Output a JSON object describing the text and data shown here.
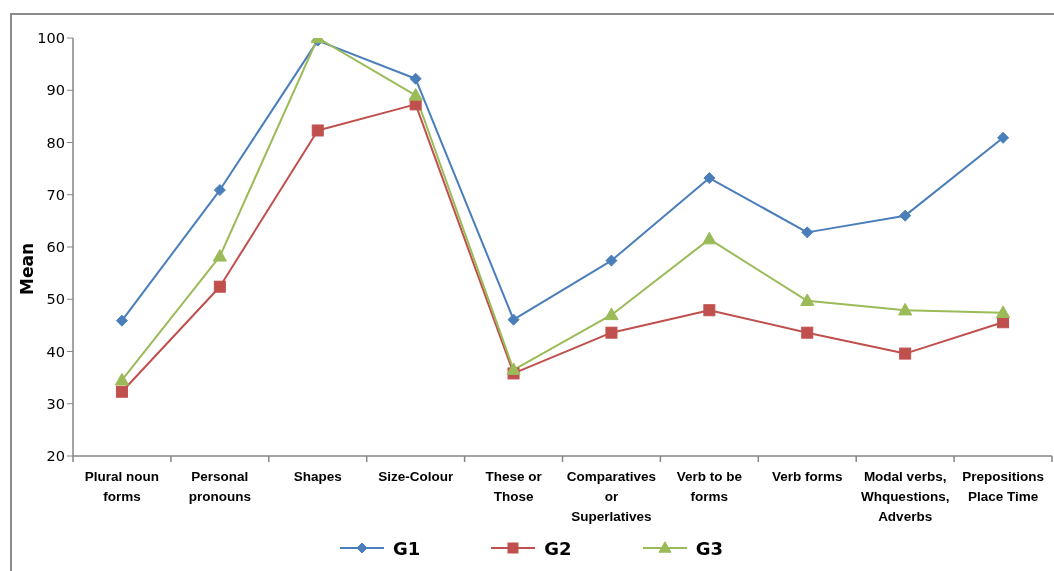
{
  "chart_data": {
    "type": "line",
    "ylabel": "Mean",
    "categories": [
      "Plural noun forms",
      "Personal pronouns",
      "Shapes",
      "Size-Colour",
      "These or Those",
      "Comparatives or Superlatives",
      "Verb to be forms",
      "Verb forms",
      "Modal verbs, Whquestions, Adverbs",
      "Prepositions Place Time"
    ],
    "series": [
      {
        "name": "G1",
        "color": "#4a7ebb",
        "marker": "diamond",
        "values": [
          45.9,
          70.9,
          99.5,
          92.2,
          46.1,
          57.4,
          73.2,
          62.8,
          66,
          80.9
        ]
      },
      {
        "name": "G2",
        "color": "#c0504d",
        "marker": "square",
        "values": [
          32.3,
          52.4,
          82.3,
          87.3,
          35.8,
          43.6,
          47.9,
          43.6,
          39.6,
          45.6
        ]
      },
      {
        "name": "G3",
        "color": "#9bbb59",
        "marker": "triangle",
        "values": [
          34.5,
          58.2,
          100,
          89,
          36.5,
          47,
          61.5,
          49.7,
          47.9,
          47.4
        ]
      }
    ],
    "ylim": [
      20,
      100
    ],
    "yticks": [
      20,
      30,
      40,
      50,
      60,
      70,
      80,
      90,
      100
    ],
    "legend": "bottom"
  }
}
